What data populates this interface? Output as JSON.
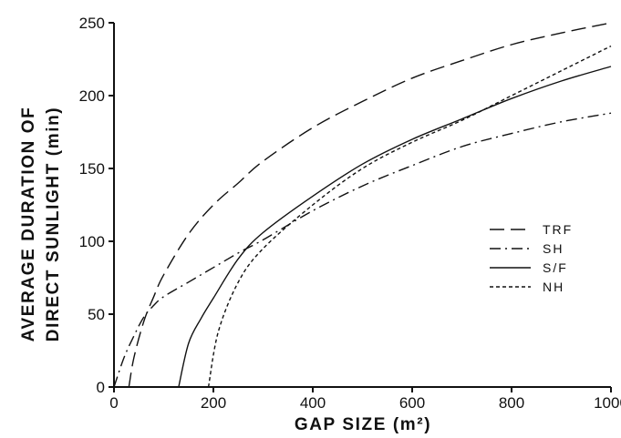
{
  "chart_data": {
    "type": "line",
    "xlabel": "GAP SIZE (m²)",
    "ylabel_lines": [
      "AVERAGE DURATION OF",
      "DIRECT SUNLIGHT (min)"
    ],
    "xlim": [
      0,
      1000
    ],
    "ylim": [
      0,
      250
    ],
    "x_ticks": [
      0,
      200,
      400,
      600,
      800,
      1000
    ],
    "y_ticks": [
      0,
      50,
      100,
      150,
      200,
      250
    ],
    "x_tick_labels": [
      "0",
      "200",
      "400",
      "600",
      "800",
      "1000"
    ],
    "y_tick_labels": [
      "0",
      "50",
      "100",
      "150",
      "200",
      "250"
    ],
    "grid": false,
    "legend_position": "right",
    "series": [
      {
        "name": "TRF",
        "dash": "long-dash",
        "x": [
          30,
          40,
          60,
          80,
          100,
          150,
          200,
          250,
          300,
          400,
          500,
          600,
          700,
          800,
          900,
          1000
        ],
        "y": [
          0,
          20,
          45,
          62,
          77,
          105,
          125,
          140,
          155,
          178,
          196,
          212,
          224,
          235,
          243,
          250
        ]
      },
      {
        "name": "SH",
        "dash": "dash-dot",
        "x": [
          0,
          20,
          40,
          60,
          80,
          100,
          150,
          200,
          250,
          300,
          400,
          500,
          600,
          700,
          800,
          900,
          1000
        ],
        "y": [
          0,
          20,
          35,
          48,
          56,
          62,
          72,
          82,
          92,
          101,
          121,
          138,
          152,
          165,
          174,
          182,
          188
        ]
      },
      {
        "name": "S/F",
        "dash": "solid",
        "x": [
          130,
          150,
          175,
          200,
          250,
          300,
          400,
          500,
          600,
          700,
          800,
          900,
          1000
        ],
        "y": [
          0,
          30,
          47,
          61,
          88,
          106,
          131,
          153,
          170,
          184,
          198,
          210,
          220
        ]
      },
      {
        "name": "NH",
        "dash": "short-dash",
        "x": [
          190,
          210,
          250,
          300,
          400,
          500,
          600,
          700,
          800,
          900,
          1000
        ],
        "y": [
          0,
          38,
          72,
          95,
          125,
          150,
          168,
          183,
          200,
          217,
          234
        ]
      }
    ]
  }
}
